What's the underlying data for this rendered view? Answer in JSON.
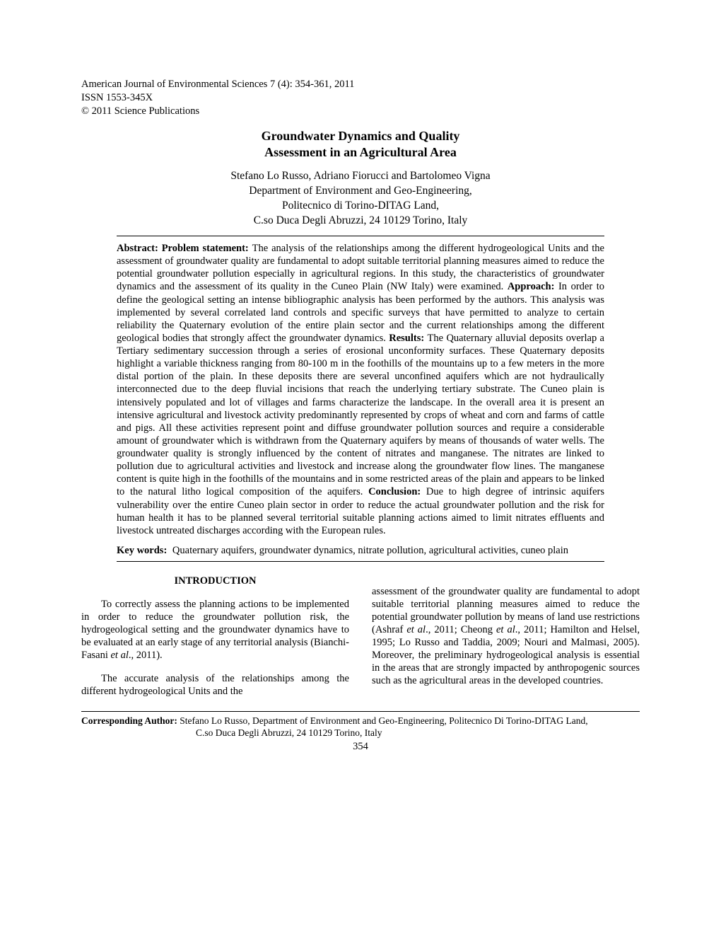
{
  "journal": {
    "citation": "American Journal of Environmental Sciences 7 (4): 354-361, 2011",
    "issn": "ISSN 1553-345X",
    "copyright": "© 2011 Science Publications"
  },
  "title": {
    "line1": "Groundwater Dynamics and Quality",
    "line2": "Assessment in an Agricultural Area"
  },
  "authors": {
    "names": "Stefano Lo Russo, Adriano Fiorucci and Bartolomeo Vigna",
    "dept": "Department of Environment and Geo-Engineering,",
    "inst": "Politecnico di Torino-DITAG Land,",
    "addr": "C.so Duca Degli Abruzzi, 24 10129 Torino, Italy"
  },
  "abstract": {
    "label_abstract": "Abstract: ",
    "label_problem": "Problem statement: ",
    "text_problem": "The analysis of the relationships among the different hydrogeological Units and the assessment of groundwater quality are fundamental to adopt suitable territorial planning measures aimed to reduce the potential groundwater pollution especially in agricultural regions. In this study, the characteristics of groundwater dynamics and the assessment of its quality in the Cuneo Plain (NW Italy) were examined. ",
    "label_approach": "Approach: ",
    "text_approach": "In order to define the geological setting an intense bibliographic analysis has been performed by the authors. This analysis was implemented by several correlated land controls and specific surveys that have permitted to analyze to certain reliability the Quaternary evolution of the entire plain sector and the current relationships among the different geological bodies that strongly affect the groundwater dynamics. ",
    "label_results": "Results: ",
    "text_results": "The Quaternary alluvial deposits overlap a Tertiary sedimentary succession through a series of erosional unconformity surfaces. These Quaternary deposits highlight a variable thickness ranging from 80-100 m in the foothills of the mountains up to a few meters in the more distal portion of the plain. In these deposits there are several unconfined aquifers which are not hydraulically interconnected due to the deep fluvial incisions that reach the underlying tertiary substrate. The Cuneo plain is intensively populated and lot of villages and farms characterize the landscape. In the overall area it is present an intensive agricultural and livestock activity predominantly represented by crops of wheat and corn and farms of cattle and pigs. All these activities represent point and diffuse groundwater pollution sources and require a considerable amount of groundwater which is withdrawn from the Quaternary aquifers by means of thousands of water wells. The groundwater quality is strongly influenced by the content of nitrates and manganese. The nitrates are linked to pollution due to agricultural activities and livestock and increase along the groundwater flow lines. The manganese content is quite high in the foothills of the mountains and in some restricted areas of the plain and appears to be linked to the natural litho logical composition of the aquifers. ",
    "label_conclusion": "Conclusion: ",
    "text_conclusion": "Due to high degree of intrinsic aquifers vulnerability over the entire Cuneo plain sector in order to reduce the actual groundwater pollution and the risk for human health it has to be planned several territorial suitable planning actions aimed to limit nitrates effluents and livestock untreated discharges according with the European rules."
  },
  "keywords": {
    "label": "Key words:",
    "text": "Quaternary aquifers, groundwater dynamics, nitrate pollution, agricultural activities, cuneo plain"
  },
  "intro": {
    "heading": "INTRODUCTION",
    "col1_p1_a": "To correctly assess the planning actions to be implemented in order to reduce the groundwater pollution risk, the hydrogeological setting and the groundwater dynamics have to be evaluated at an early stage of any territorial analysis (Bianchi-Fasani ",
    "col1_p1_b": "et al",
    "col1_p1_c": "., 2011).",
    "col1_p2": "The accurate analysis of the relationships among the different hydrogeological Units and the",
    "col2_a": "assessment of the groundwater quality are fundamental to adopt suitable territorial planning measures aimed to reduce the potential groundwater pollution by means of land use restrictions (Ashraf ",
    "col2_b": "et al",
    "col2_c": "., 2011; Cheong ",
    "col2_d": "et al",
    "col2_e": "., 2011; Hamilton and Helsel, 1995; Lo Russo and Taddia, 2009; Nouri and Malmasi, 2005). Moreover, the preliminary hydrogeological analysis is essential in the areas that are strongly impacted by anthropogenic sources such as the agricultural areas in the developed countries."
  },
  "corresponding": {
    "label": "Corresponding Author:",
    "line1": "Stefano Lo Russo, Department of Environment and Geo-Engineering, Politecnico Di Torino-DITAG Land,",
    "line2": "C.so Duca Degli Abruzzi, 24 10129 Torino, Italy"
  },
  "page_number": "354"
}
